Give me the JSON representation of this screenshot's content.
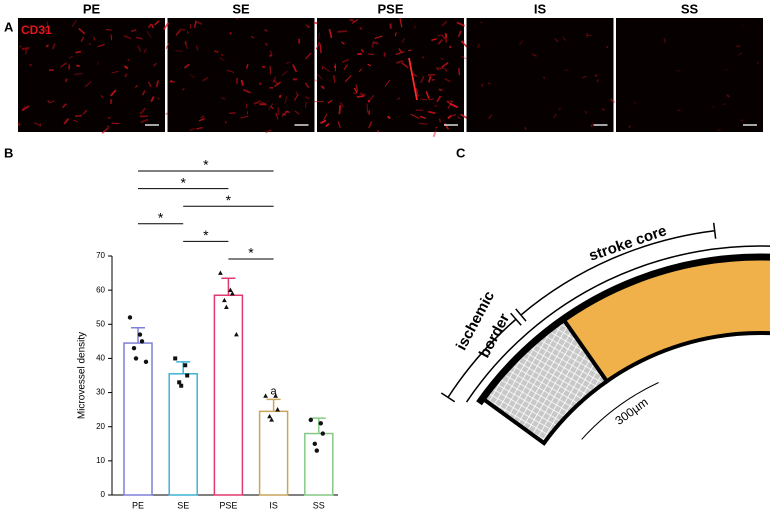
{
  "panel_labels": [
    "A",
    "B",
    "C"
  ],
  "images": {
    "stain": "CD31",
    "titles": [
      "PE",
      "SE",
      "PSE",
      "IS",
      "SS"
    ]
  },
  "chart_data": {
    "type": "bar",
    "ylabel": "Microvessel density",
    "categories": [
      "PE",
      "SE",
      "PSE",
      "IS",
      "SS"
    ],
    "values": [
      44.5,
      35.5,
      58.5,
      24.5,
      18
    ],
    "errors": [
      4.5,
      3.5,
      5,
      3.5,
      4.5
    ],
    "points": [
      [
        52,
        47,
        45,
        43,
        40,
        39
      ],
      [
        40,
        38,
        35,
        33,
        32
      ],
      [
        65,
        60,
        59,
        57,
        55,
        47
      ],
      [
        29,
        29,
        25,
        23,
        22
      ],
      [
        22,
        21,
        18,
        15,
        13
      ]
    ],
    "markers": [
      "circle",
      "square",
      "triangle",
      "triangle",
      "circle"
    ],
    "colors": [
      "#7f7fd8",
      "#3fb3d3",
      "#e23a6e",
      "#c9a45a",
      "#86c986"
    ],
    "ylim": [
      0,
      70
    ],
    "yticks": [
      0,
      10,
      20,
      30,
      40,
      50,
      60,
      70
    ],
    "significance": [
      {
        "from": 0,
        "to": 3,
        "label": "*"
      },
      {
        "from": 0,
        "to": 2,
        "label": "*"
      },
      {
        "from": 1,
        "to": 3,
        "label": "*"
      },
      {
        "from": 0,
        "to": 1,
        "label": "*"
      },
      {
        "from": 1,
        "to": 2,
        "label": "*"
      },
      {
        "from": 2,
        "to": 3,
        "label": "*"
      }
    ],
    "annotations": [
      {
        "category": 3,
        "label": "a"
      }
    ]
  },
  "diagram": {
    "core": "stroke core",
    "border": [
      "ischemic",
      "border"
    ],
    "scale": "300µm"
  }
}
